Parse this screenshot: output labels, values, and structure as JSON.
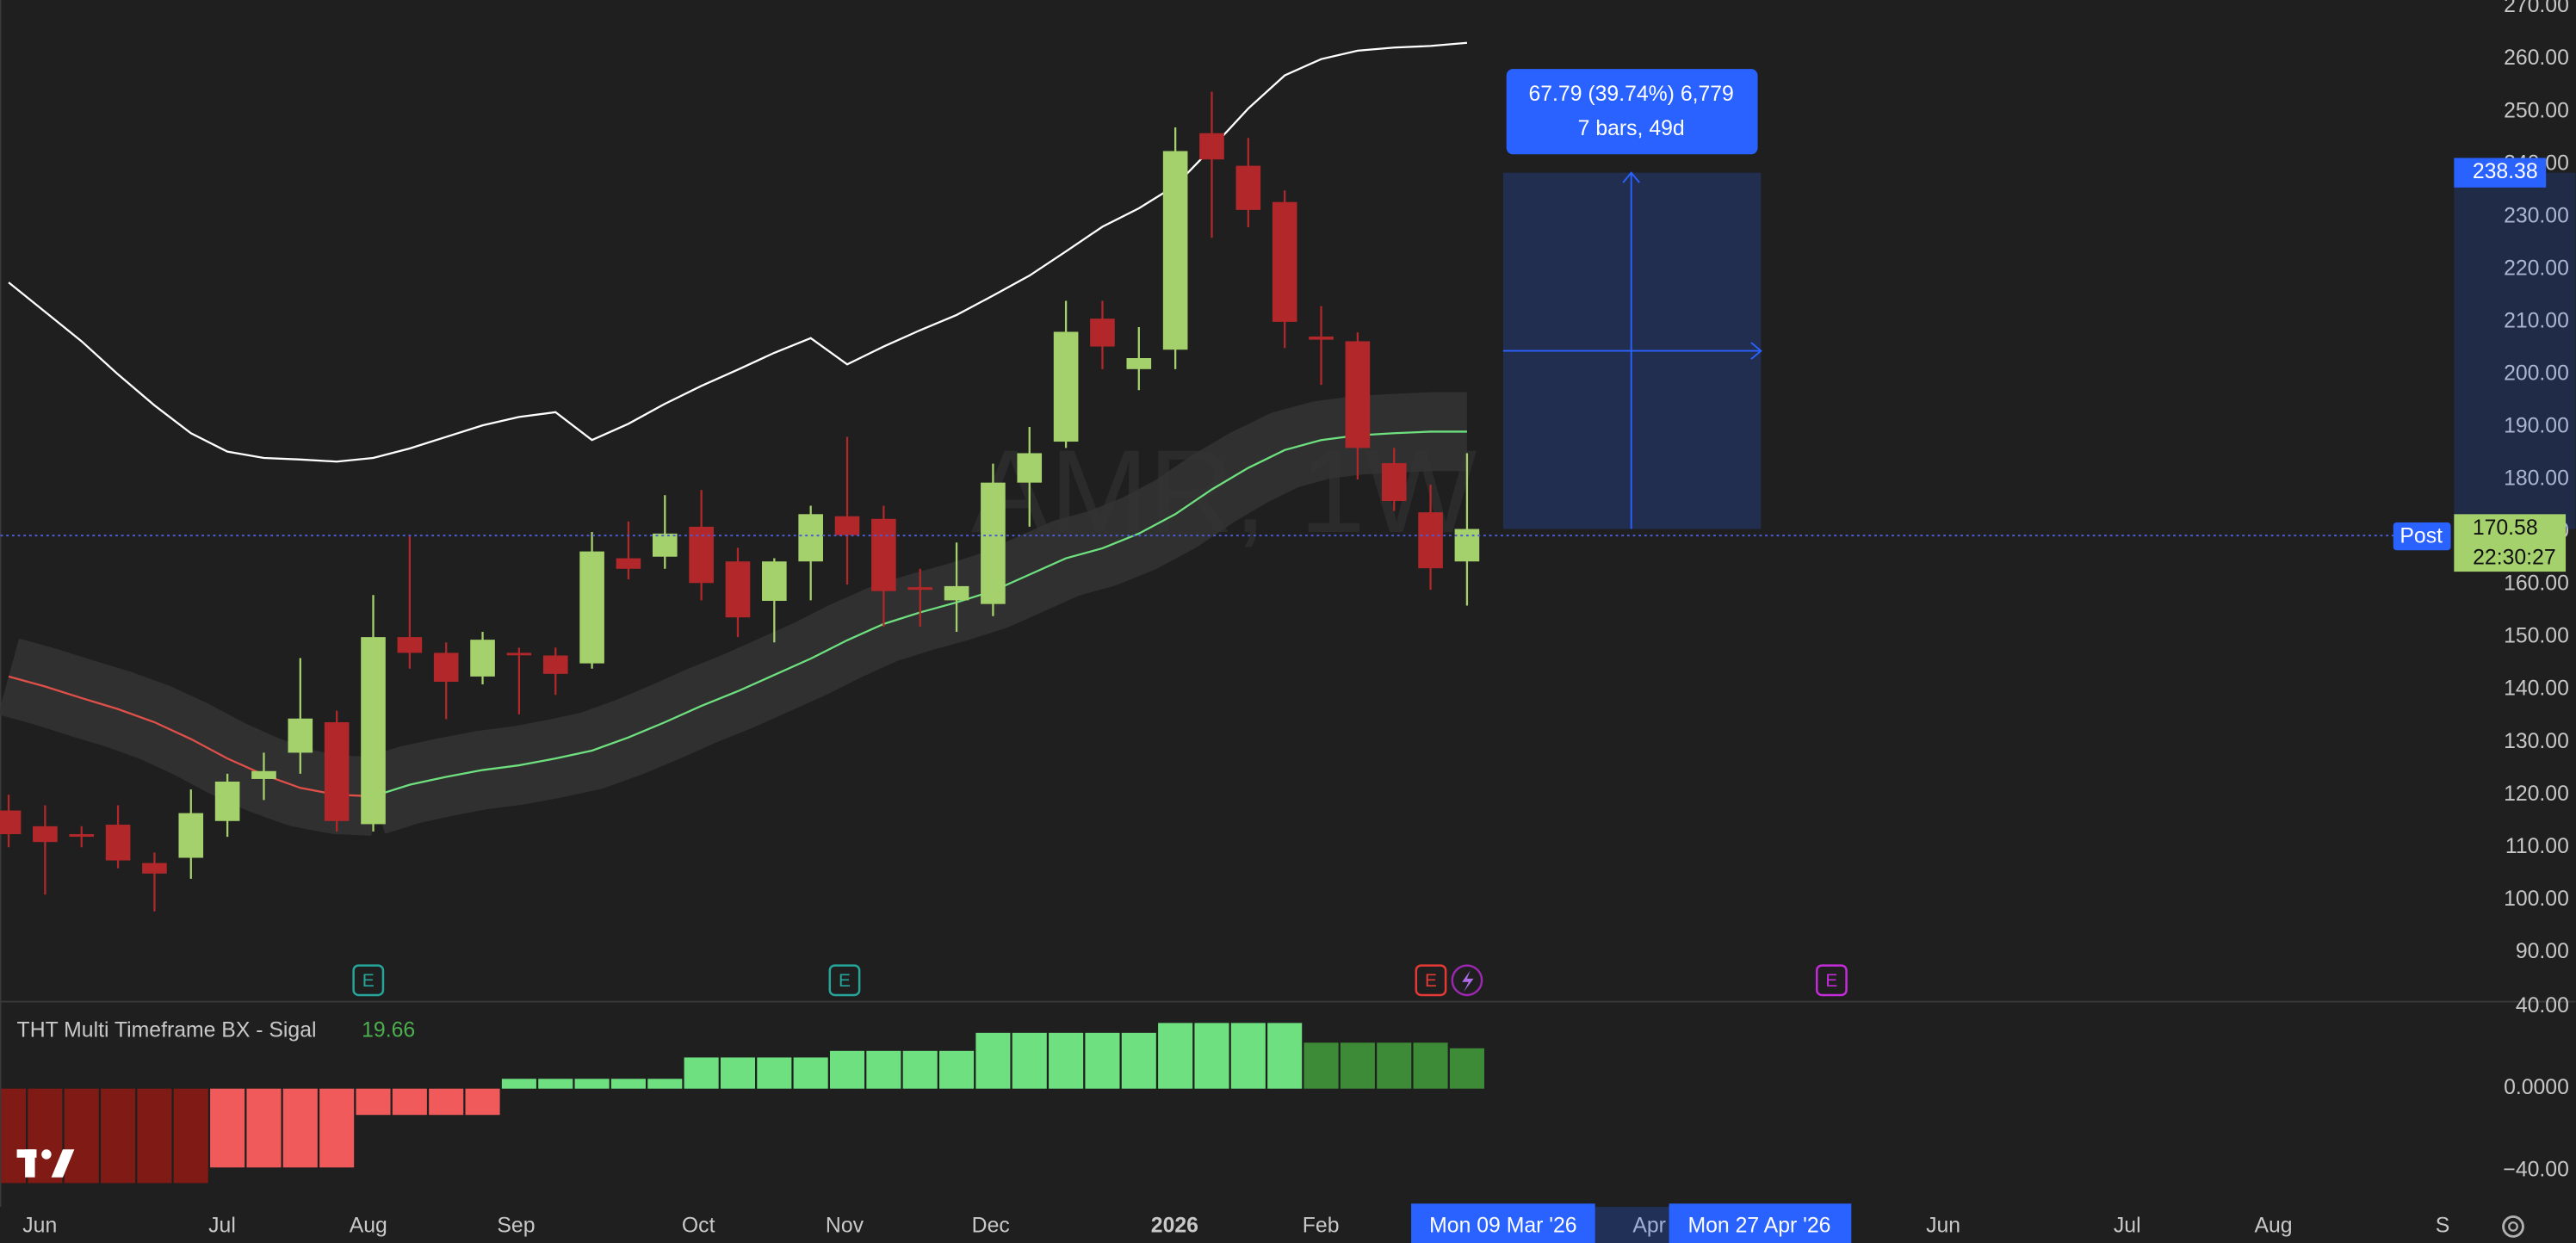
{
  "chart_data": [
    {
      "type": "candlestick",
      "watermark": "AMR, 1W",
      "open": [
        117,
        114,
        112.5,
        114.3,
        107,
        108,
        115,
        123,
        128,
        133.8,
        114.4,
        150,
        147,
        142.5,
        147,
        146.5,
        145,
        165,
        165.3,
        171,
        164.4,
        156.9,
        164.4,
        173,
        172.5,
        159.5,
        157,
        156.3,
        179.4,
        187.2,
        210.6,
        201,
        204.7,
        245.9,
        239.7,
        232.8,
        207.2,
        206.3,
        183.1,
        173.75,
        164.4
      ],
      "high": [
        120,
        118,
        114,
        118,
        109,
        121,
        124,
        128,
        146,
        136,
        158,
        169.4,
        149,
        151,
        148,
        148,
        170,
        172,
        177,
        178,
        167,
        165,
        175,
        188.1,
        175,
        163,
        168,
        183,
        190,
        214,
        214,
        209,
        247,
        253.8,
        245,
        235,
        213,
        208,
        186,
        179,
        185
      ],
      "low": [
        110,
        101,
        110,
        106,
        97.8,
        104,
        112,
        119,
        124,
        113,
        113,
        144,
        134.4,
        141,
        135.3,
        139,
        144,
        161,
        163,
        157,
        150,
        149,
        157,
        160,
        152,
        152,
        151,
        154,
        171,
        186,
        201,
        197,
        201,
        226,
        228,
        205,
        198,
        180,
        174,
        159,
        156
      ],
      "close": [
        112.5,
        111,
        112,
        107.5,
        105,
        116.5,
        122.5,
        124.5,
        134.5,
        115,
        150,
        147,
        141.5,
        149.5,
        146.6,
        143,
        166.3,
        163,
        169.7,
        160.3,
        153.75,
        164.4,
        173.4,
        169.4,
        158.75,
        159,
        159.7,
        179.4,
        185,
        208.1,
        205.3,
        203.1,
        242.5,
        240.9,
        231.3,
        210,
        206.6,
        186,
        175.9,
        163.1,
        170.58
      ],
      "up_color": "#a5d16c",
      "down_color": "#b2282a",
      "lines": [
        {
          "color": "#ffffff",
          "values": [
            217.5,
            211.9,
            206.3,
            200,
            194.1,
            188.8,
            185.3,
            184.1,
            183.8,
            183.4,
            184.1,
            185.9,
            188.1,
            190.3,
            191.9,
            192.8,
            187.5,
            190.6,
            194.4,
            197.8,
            200.9,
            204.1,
            206.9,
            201.9,
            205.3,
            208.4,
            211.3,
            215,
            218.8,
            223.4,
            228.1,
            231.6,
            235.9,
            243.1,
            250.6,
            256.9,
            260,
            261.6,
            262.2,
            262.5,
            263.1
          ]
        },
        {
          "color": "#e0504a",
          "values": [
            142.5,
            140.6,
            138.4,
            136.3,
            133.8,
            130.6,
            126.9,
            123.8,
            121.3,
            120,
            119.7,
            null,
            null,
            null,
            null,
            null,
            null,
            null,
            null,
            null,
            null,
            null,
            null,
            null,
            null,
            null,
            null,
            null,
            null,
            null,
            null,
            null,
            null,
            null,
            null,
            null,
            null,
            null,
            null,
            null,
            null
          ]
        },
        {
          "color": "#6ee07f",
          "values": [
            null,
            null,
            null,
            null,
            null,
            null,
            null,
            null,
            null,
            null,
            119.7,
            121.9,
            123.4,
            124.7,
            125.6,
            126.9,
            128.4,
            130.9,
            133.8,
            136.9,
            139.7,
            142.8,
            145.9,
            149.4,
            152.5,
            154.7,
            156.6,
            158.8,
            161.9,
            165,
            166.9,
            169.7,
            173.4,
            178.1,
            182.2,
            185.6,
            187.5,
            188.4,
            188.8,
            189.1,
            189.1
          ]
        }
      ],
      "band_color": "#343434",
      "ylim": [
        80.625,
        271.25
      ],
      "yticks": [
        {
          "value": 90,
          "label": "90.00"
        },
        {
          "value": 100,
          "label": "100.00"
        },
        {
          "value": 110,
          "label": "110.00"
        },
        {
          "value": 120,
          "label": "120.00"
        },
        {
          "value": 130,
          "label": "130.00"
        },
        {
          "value": 140,
          "label": "140.00"
        },
        {
          "value": 150,
          "label": "150.00"
        },
        {
          "value": 160,
          "label": "160.00"
        },
        {
          "value": 170,
          "label": "170.00"
        },
        {
          "value": 180,
          "label": "180.00"
        },
        {
          "value": 190,
          "label": "190.00"
        },
        {
          "value": 200,
          "label": "200.00"
        },
        {
          "value": 210,
          "label": "210.00"
        },
        {
          "value": 220,
          "label": "220.00"
        },
        {
          "value": 230,
          "label": "230.00"
        },
        {
          "value": 240,
          "label": "240.00"
        },
        {
          "value": 250,
          "label": "250.00"
        },
        {
          "value": 260,
          "label": "260.00"
        },
        {
          "value": 270,
          "label": "270.00"
        }
      ],
      "x_labels": [
        "Jun",
        "Jul",
        "Aug",
        "Sep",
        "Oct",
        "Nov",
        "Dec",
        "2026",
        "Feb",
        "Apr",
        "Jun",
        "Jul",
        "Aug",
        "S"
      ],
      "countdown": "22:30:27",
      "session": "Post",
      "measure": {
        "to": 238.38,
        "text": [
          "67.79 (39.74%) 6,779",
          "7 bars, 49d"
        ]
      },
      "date_range": [
        "Mon 09 Mar '26",
        "Mon 27 Apr '26"
      ],
      "event_marker": "E"
    },
    {
      "type": "bar",
      "title": "THT Multi Timeframe BX - Sigal",
      "values": [
        -46,
        -46,
        -46,
        -46,
        -46,
        -46,
        -38.4,
        -38.4,
        -38.4,
        -38.4,
        -12.8,
        -12.8,
        -12.8,
        -12.8,
        4.8,
        4.8,
        4.8,
        4.8,
        4.8,
        15.2,
        15.2,
        15.2,
        15.2,
        18.4,
        18.4,
        18.4,
        18.4,
        27.2,
        27.2,
        27.2,
        27.2,
        27.2,
        32,
        32,
        32,
        32,
        22.4,
        22.4,
        22.4,
        22.4,
        19.66
      ],
      "colors": [
        "#7f1a14",
        "#7f1a14",
        "#7f1a14",
        "#7f1a14",
        "#7f1a14",
        "#7f1a14",
        "#f05a5a",
        "#f05a5a",
        "#f05a5a",
        "#f05a5a",
        "#f05a5a",
        "#f05a5a",
        "#f05a5a",
        "#f05a5a",
        "#6ee07f",
        "#6ee07f",
        "#6ee07f",
        "#6ee07f",
        "#6ee07f",
        "#6ee07f",
        "#6ee07f",
        "#6ee07f",
        "#6ee07f",
        "#6ee07f",
        "#6ee07f",
        "#6ee07f",
        "#6ee07f",
        "#6ee07f",
        "#6ee07f",
        "#6ee07f",
        "#6ee07f",
        "#6ee07f",
        "#6ee07f",
        "#6ee07f",
        "#6ee07f",
        "#6ee07f",
        "#3d8b37",
        "#3d8b37",
        "#3d8b37",
        "#3d8b37",
        "#3d8b37"
      ],
      "ylim": [
        -57.6,
        42.4
      ],
      "yticks": [
        {
          "value": 40,
          "label": "40.00"
        },
        {
          "value": 0,
          "label": "0.0000"
        },
        {
          "value": -40,
          "label": "−40.00"
        }
      ]
    }
  ]
}
